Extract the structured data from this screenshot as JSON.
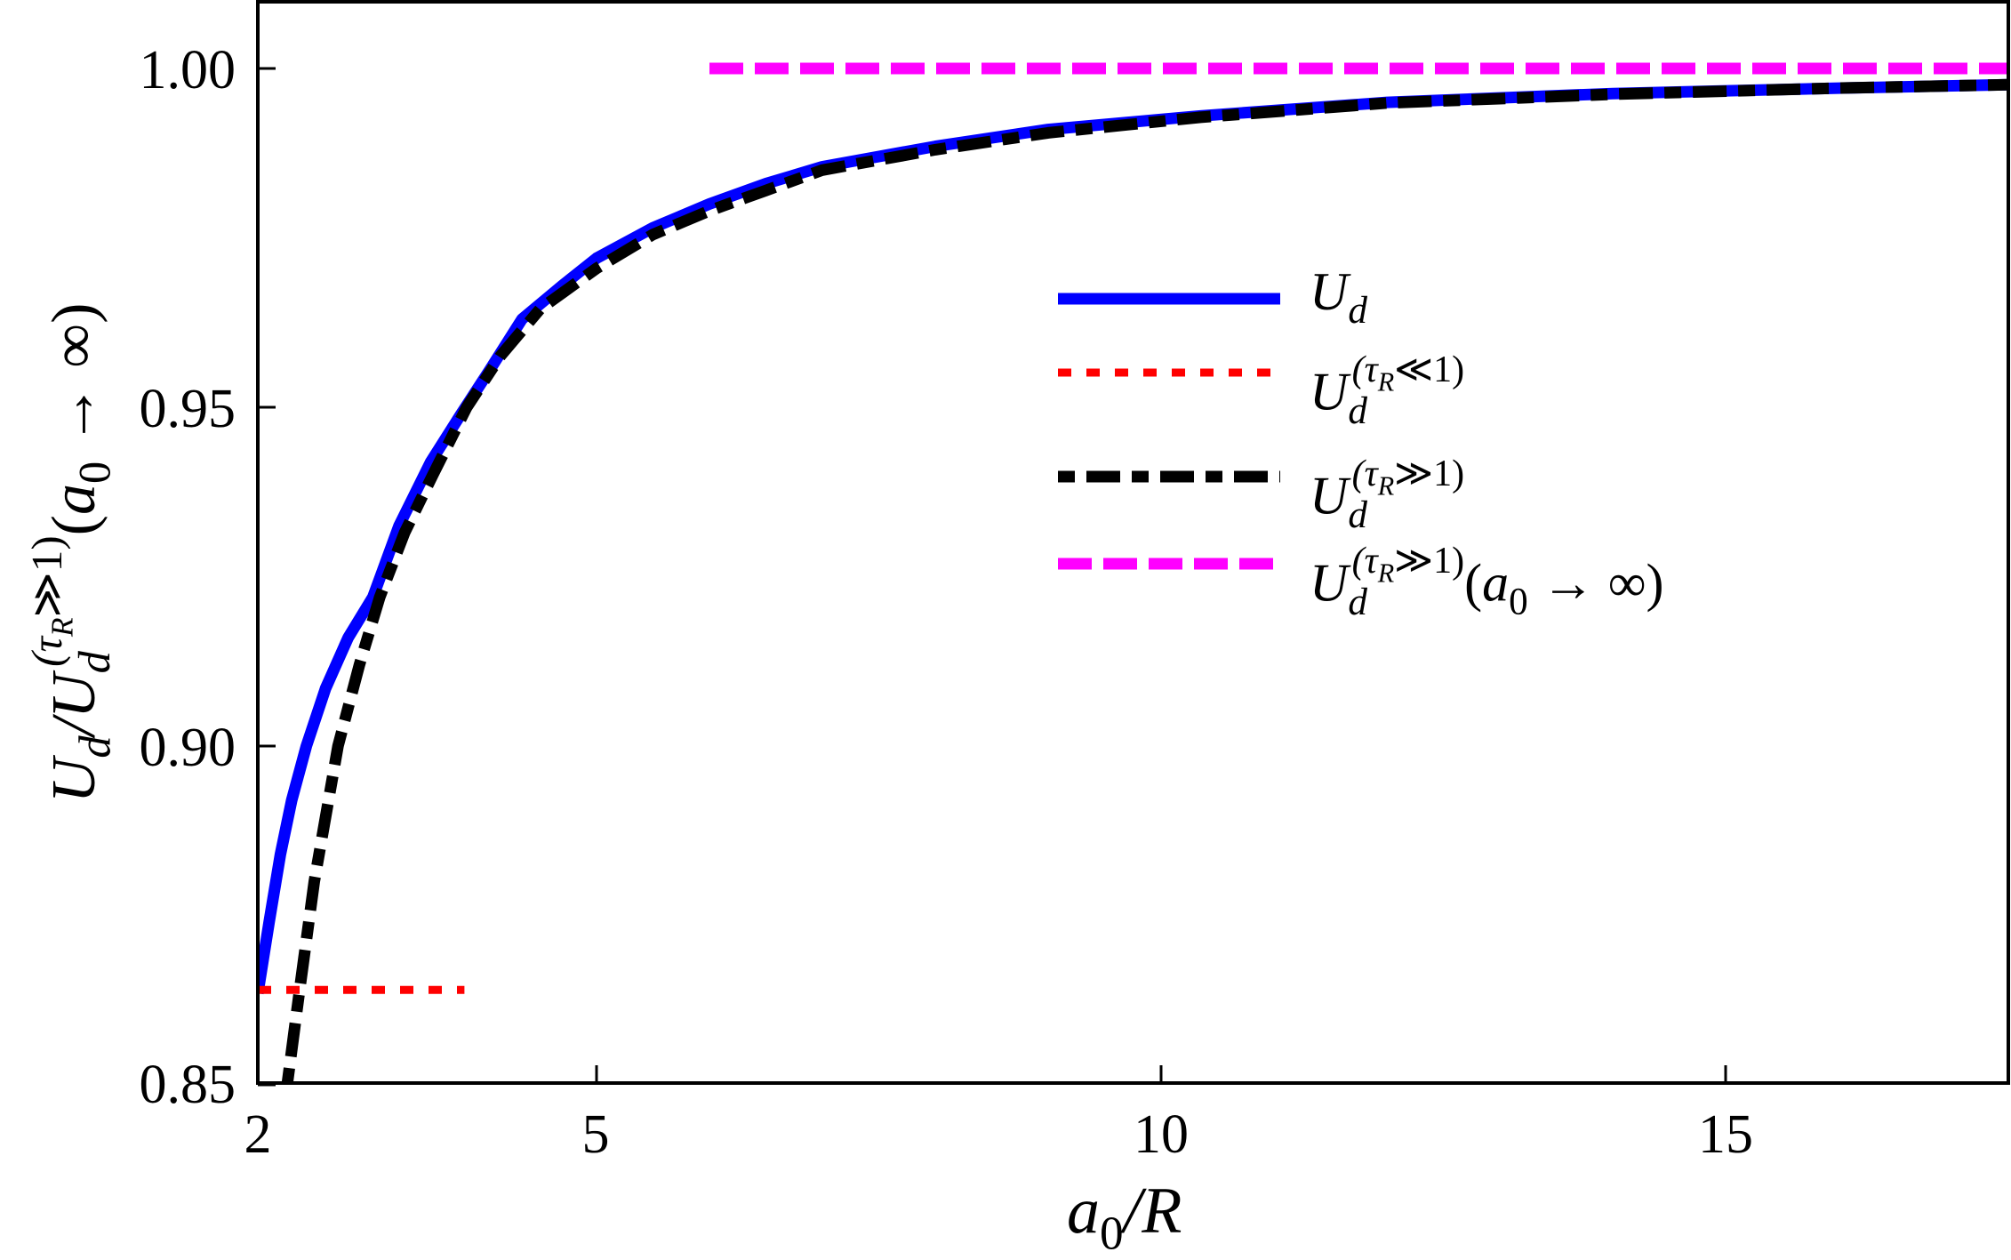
{
  "chart_data": {
    "type": "line",
    "title": "",
    "xlabel": "a0/R",
    "ylabel": "U_d / U_d^(τR≫1)(a0 → ∞)",
    "xlim": [
      2,
      17.5
    ],
    "ylim": [
      0.85,
      1.01
    ],
    "grid": false,
    "legend_position": "center-right (inside plot)",
    "x_ticks": [
      2,
      5,
      10,
      15
    ],
    "x_tick_labels": [
      "2",
      "5",
      "10",
      "15"
    ],
    "y_ticks": [
      0.85,
      0.9,
      0.95,
      1.0
    ],
    "y_tick_labels": [
      "0.85",
      "0.90",
      "0.95",
      "1.00"
    ],
    "series": [
      {
        "name": "U_d",
        "style": "solid",
        "color": "#0000ff",
        "x": [
          2.0,
          2.1,
          2.2,
          2.3,
          2.43,
          2.6,
          2.8,
          3.02,
          3.25,
          3.53,
          3.8,
          4.05,
          4.34,
          4.7,
          5.0,
          5.5,
          6.0,
          6.5,
          7.0,
          8.0,
          9.0,
          10.35,
          12.0,
          14.0,
          16.0,
          17.5
        ],
        "y": [
          0.8635,
          0.874,
          0.884,
          0.892,
          0.9,
          0.9085,
          0.916,
          0.922,
          0.9325,
          0.9419,
          0.949,
          0.9554,
          0.963,
          0.968,
          0.972,
          0.9765,
          0.98,
          0.983,
          0.9855,
          0.9885,
          0.991,
          0.993,
          0.995,
          0.9963,
          0.9971,
          0.9976
        ]
      },
      {
        "name": "U_d^(τR≪1)",
        "style": "dotted",
        "color": "#ff0000",
        "x": [
          2.0,
          3.83
        ],
        "y": [
          0.864,
          0.864
        ]
      },
      {
        "name": "U_d^(τR≫1)",
        "style": "dash-dot",
        "color": "#000000",
        "x": [
          2.26,
          2.37,
          2.5,
          2.71,
          2.9,
          3.08,
          3.3,
          3.55,
          3.85,
          4.15,
          4.5,
          5.0,
          5.5,
          6.0,
          6.5,
          7.0,
          8.0,
          9.0,
          10.35,
          12.0,
          14.0,
          16.0,
          17.5
        ],
        "y": [
          0.85,
          0.864,
          0.88,
          0.9,
          0.912,
          0.922,
          0.9315,
          0.94,
          0.95,
          0.9576,
          0.9645,
          0.9705,
          0.9755,
          0.979,
          0.982,
          0.985,
          0.988,
          0.9905,
          0.9928,
          0.9949,
          0.9962,
          0.9971,
          0.9976
        ]
      },
      {
        "name": "U_d^(τR≫1)(a0 → ∞)",
        "style": "dashed",
        "color": "#ff00ff",
        "x": [
          6.0,
          17.5
        ],
        "y": [
          1.0,
          1.0
        ]
      }
    ]
  },
  "axes": {
    "x_label": {
      "base": "a",
      "sub": "0",
      "rest": "/R"
    },
    "y_label": {
      "num": "U",
      "num_sub": "d",
      "den": "U",
      "den_sub": "d",
      "den_sup": "(τ",
      "den_sup_sub": "R",
      "den_sup_rest": "≫1)",
      "tail_open": "(",
      "tail_a": "a",
      "tail_a_sub": "0",
      "tail_rest": " → ∞)"
    },
    "x_ticks": [
      {
        "label": "2"
      },
      {
        "label": "5"
      },
      {
        "label": "10"
      },
      {
        "label": "15"
      }
    ],
    "y_ticks": [
      {
        "label": "1.00"
      },
      {
        "label": "0.95"
      },
      {
        "label": "0.90"
      },
      {
        "label": "0.85"
      }
    ]
  },
  "legend": {
    "items": [
      {
        "base": "U",
        "sub": "d",
        "sup": "",
        "suffix": ""
      },
      {
        "base": "U",
        "sub": "d",
        "sup": "(τ",
        "sup_sub": "R",
        "sup_rest": "≪1)",
        "suffix": ""
      },
      {
        "base": "U",
        "sub": "d",
        "sup": "(τ",
        "sup_sub": "R",
        "sup_rest": "≫1)",
        "suffix": ""
      },
      {
        "base": "U",
        "sub": "d",
        "sup": "(τ",
        "sup_sub": "R",
        "sup_rest": "≫1)",
        "suffix_open": "(",
        "suffix_a": "a",
        "suffix_a_sub": "0",
        "suffix": " → ∞)"
      }
    ]
  },
  "colors": {
    "blue": "#0000ff",
    "red": "#ff0000",
    "black": "#000000",
    "magenta": "#ff00ff"
  }
}
